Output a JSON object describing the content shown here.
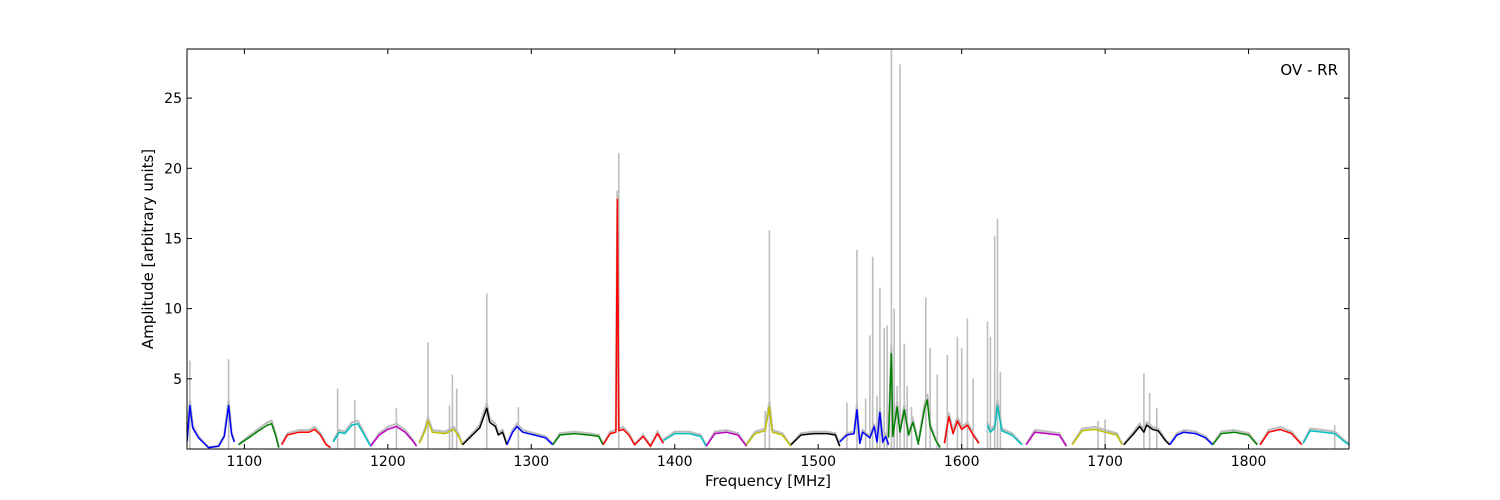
{
  "chart_data": {
    "type": "line",
    "title": "",
    "annotation": "OV - RR",
    "xlabel": "Frequency [MHz]",
    "ylabel": "Amplitude [arbitrary units]",
    "xlim": [
      1060,
      1870
    ],
    "ylim": [
      0,
      28.5
    ],
    "xticks": [
      1100,
      1200,
      1300,
      1400,
      1500,
      1600,
      1700,
      1800
    ],
    "yticks": [
      5,
      10,
      15,
      20,
      25
    ],
    "grid": false,
    "gray_color": "#bebebe",
    "gray_peaks": [
      [
        1062,
        6.3
      ],
      [
        1089,
        6.4
      ],
      [
        1165,
        4.3
      ],
      [
        1177,
        3.5
      ],
      [
        1206,
        2.9
      ],
      [
        1228,
        7.6
      ],
      [
        1243,
        3.1
      ],
      [
        1245,
        5.3
      ],
      [
        1248,
        4.3
      ],
      [
        1269,
        11.1
      ],
      [
        1291,
        3.0
      ],
      [
        1361,
        21.1
      ],
      [
        1463,
        2.7
      ],
      [
        1466,
        15.6
      ],
      [
        1520,
        3.3
      ],
      [
        1527,
        14.2
      ],
      [
        1533,
        3.6
      ],
      [
        1536,
        8.1
      ],
      [
        1538,
        13.7
      ],
      [
        1541,
        3.8
      ],
      [
        1543,
        11.5
      ],
      [
        1546,
        8.6
      ],
      [
        1548,
        8.8
      ],
      [
        1551,
        28.5
      ],
      [
        1553,
        10.0
      ],
      [
        1555,
        4.5
      ],
      [
        1557,
        27.4
      ],
      [
        1560,
        7.5
      ],
      [
        1562,
        4.5
      ],
      [
        1565,
        3.0
      ],
      [
        1575,
        10.8
      ],
      [
        1578,
        7.2
      ],
      [
        1583,
        5.3
      ],
      [
        1590,
        6.7
      ],
      [
        1597,
        8.0
      ],
      [
        1600,
        7.2
      ],
      [
        1604,
        9.3
      ],
      [
        1608,
        5.0
      ],
      [
        1618,
        9.1
      ],
      [
        1620,
        8.0
      ],
      [
        1623,
        15.2
      ],
      [
        1625,
        16.4
      ],
      [
        1627,
        5.5
      ],
      [
        1695,
        2.0
      ],
      [
        1700,
        2.1
      ],
      [
        1727,
        5.4
      ],
      [
        1731,
        4.0
      ],
      [
        1736,
        2.9
      ],
      [
        1860,
        1.7
      ]
    ],
    "series": [
      {
        "color": "#0000ff",
        "points": [
          [
            1060,
            0.5
          ],
          [
            1062,
            3.1
          ],
          [
            1064,
            1.5
          ],
          [
            1068,
            0.8
          ],
          [
            1075,
            0.1
          ],
          [
            1082,
            0.2
          ],
          [
            1086,
            0.9
          ],
          [
            1089,
            3.1
          ],
          [
            1091,
            1.1
          ],
          [
            1093,
            0.5
          ]
        ]
      },
      {
        "color": "#008000",
        "points": [
          [
            1096,
            0.3
          ],
          [
            1103,
            0.8
          ],
          [
            1110,
            1.3
          ],
          [
            1116,
            1.7
          ],
          [
            1119,
            1.8
          ],
          [
            1122,
            0.9
          ],
          [
            1124,
            0.1
          ]
        ]
      },
      {
        "color": "#ff0000",
        "points": [
          [
            1126,
            0.3
          ],
          [
            1130,
            1.0
          ],
          [
            1138,
            1.2
          ],
          [
            1145,
            1.2
          ],
          [
            1149,
            1.4
          ],
          [
            1153,
            1.0
          ],
          [
            1157,
            0.3
          ],
          [
            1160,
            0.1
          ]
        ]
      },
      {
        "color": "#00bfbf",
        "points": [
          [
            1162,
            0.5
          ],
          [
            1166,
            1.2
          ],
          [
            1170,
            1.1
          ],
          [
            1175,
            1.7
          ],
          [
            1179,
            1.8
          ],
          [
            1183,
            1.1
          ],
          [
            1188,
            0.2
          ]
        ]
      },
      {
        "color": "#bf00bf",
        "points": [
          [
            1188,
            0.2
          ],
          [
            1194,
            1.0
          ],
          [
            1200,
            1.4
          ],
          [
            1206,
            1.6
          ],
          [
            1212,
            1.2
          ],
          [
            1218,
            0.5
          ],
          [
            1220,
            0.2
          ]
        ]
      },
      {
        "color": "#bfbf00",
        "points": [
          [
            1222,
            0.4
          ],
          [
            1226,
            1.3
          ],
          [
            1228,
            2.0
          ],
          [
            1231,
            1.2
          ],
          [
            1240,
            1.1
          ],
          [
            1246,
            1.4
          ],
          [
            1249,
            1.0
          ],
          [
            1252,
            0.3
          ]
        ]
      },
      {
        "color": "#000000",
        "points": [
          [
            1252,
            0.3
          ],
          [
            1258,
            0.9
          ],
          [
            1264,
            1.5
          ],
          [
            1269,
            2.9
          ],
          [
            1271,
            1.9
          ],
          [
            1275,
            1.6
          ],
          [
            1277,
            1.0
          ],
          [
            1280,
            1.2
          ],
          [
            1283,
            0.3
          ]
        ]
      },
      {
        "color": "#0000ff",
        "points": [
          [
            1283,
            0.3
          ],
          [
            1287,
            1.2
          ],
          [
            1290,
            1.6
          ],
          [
            1294,
            1.2
          ],
          [
            1302,
            1.0
          ],
          [
            1310,
            0.8
          ],
          [
            1315,
            0.3
          ]
        ]
      },
      {
        "color": "#008000",
        "points": [
          [
            1315,
            0.3
          ],
          [
            1320,
            1.0
          ],
          [
            1330,
            1.1
          ],
          [
            1340,
            1.0
          ],
          [
            1347,
            0.9
          ],
          [
            1350,
            0.3
          ]
        ]
      },
      {
        "color": "#ff0000",
        "points": [
          [
            1350,
            0.3
          ],
          [
            1355,
            1.1
          ],
          [
            1359,
            1.2
          ],
          [
            1360,
            17.8
          ],
          [
            1361,
            1.3
          ],
          [
            1364,
            1.4
          ],
          [
            1368,
            1.0
          ],
          [
            1372,
            0.3
          ],
          [
            1378,
            0.9
          ],
          [
            1383,
            0.2
          ],
          [
            1388,
            1.1
          ],
          [
            1392,
            0.4
          ]
        ]
      },
      {
        "color": "#00bfbf",
        "points": [
          [
            1392,
            0.6
          ],
          [
            1400,
            1.1
          ],
          [
            1410,
            1.1
          ],
          [
            1418,
            0.9
          ],
          [
            1422,
            0.2
          ]
        ]
      },
      {
        "color": "#bf00bf",
        "points": [
          [
            1422,
            0.2
          ],
          [
            1428,
            1.1
          ],
          [
            1436,
            1.2
          ],
          [
            1444,
            1.0
          ],
          [
            1450,
            0.2
          ]
        ]
      },
      {
        "color": "#bfbf00",
        "points": [
          [
            1450,
            0.3
          ],
          [
            1456,
            1.1
          ],
          [
            1463,
            1.3
          ],
          [
            1466,
            3.0
          ],
          [
            1468,
            1.2
          ],
          [
            1475,
            1.0
          ],
          [
            1481,
            0.2
          ]
        ]
      },
      {
        "color": "#000000",
        "points": [
          [
            1481,
            0.3
          ],
          [
            1488,
            1.0
          ],
          [
            1497,
            1.1
          ],
          [
            1506,
            1.1
          ],
          [
            1512,
            1.0
          ],
          [
            1515,
            0.2
          ]
        ]
      },
      {
        "color": "#0000ff",
        "points": [
          [
            1515,
            0.5
          ],
          [
            1520,
            1.0
          ],
          [
            1525,
            1.1
          ],
          [
            1527,
            2.8
          ],
          [
            1529,
            0.4
          ],
          [
            1531,
            1.2
          ],
          [
            1536,
            0.8
          ],
          [
            1539,
            1.6
          ],
          [
            1541,
            0.5
          ],
          [
            1543,
            2.6
          ],
          [
            1545,
            0.5
          ],
          [
            1547,
            0.9
          ],
          [
            1549,
            0.3
          ]
        ]
      },
      {
        "color": "#008000",
        "points": [
          [
            1549,
            0.8
          ],
          [
            1551,
            6.8
          ],
          [
            1552,
            0.9
          ],
          [
            1555,
            3.0
          ],
          [
            1557,
            1.2
          ],
          [
            1560,
            2.8
          ],
          [
            1563,
            1.0
          ],
          [
            1566,
            1.9
          ],
          [
            1570,
            0.3
          ]
        ]
      },
      {
        "color": "#008000",
        "points": [
          [
            1570,
            0.5
          ],
          [
            1574,
            2.8
          ],
          [
            1576,
            3.5
          ],
          [
            1578,
            1.6
          ],
          [
            1582,
            0.6
          ],
          [
            1585,
            0.1
          ]
        ]
      },
      {
        "color": "#ff0000",
        "points": [
          [
            1588,
            0.4
          ],
          [
            1591,
            2.3
          ],
          [
            1594,
            1.1
          ],
          [
            1597,
            2.0
          ],
          [
            1600,
            1.4
          ],
          [
            1604,
            1.7
          ],
          [
            1608,
            1.0
          ],
          [
            1612,
            0.4
          ]
        ]
      },
      {
        "color": "#00bfbf",
        "points": [
          [
            1618,
            1.7
          ],
          [
            1620,
            1.2
          ],
          [
            1623,
            1.5
          ],
          [
            1625,
            3.1
          ],
          [
            1628,
            1.3
          ],
          [
            1635,
            1.0
          ],
          [
            1642,
            0.3
          ]
        ]
      },
      {
        "color": "#bf00bf",
        "points": [
          [
            1645,
            0.3
          ],
          [
            1651,
            1.2
          ],
          [
            1660,
            1.1
          ],
          [
            1668,
            1.0
          ],
          [
            1673,
            0.2
          ]
        ]
      },
      {
        "color": "#bfbf00",
        "points": [
          [
            1677,
            0.3
          ],
          [
            1684,
            1.3
          ],
          [
            1693,
            1.4
          ],
          [
            1700,
            1.2
          ],
          [
            1708,
            1.0
          ],
          [
            1712,
            0.3
          ]
        ]
      },
      {
        "color": "#000000",
        "points": [
          [
            1713,
            0.3
          ],
          [
            1720,
            1.1
          ],
          [
            1724,
            1.6
          ],
          [
            1727,
            1.2
          ],
          [
            1729,
            1.7
          ],
          [
            1733,
            1.4
          ],
          [
            1737,
            1.3
          ],
          [
            1742,
            0.6
          ],
          [
            1745,
            0.3
          ]
        ]
      },
      {
        "color": "#0000ff",
        "points": [
          [
            1745,
            0.3
          ],
          [
            1750,
            1.0
          ],
          [
            1755,
            1.2
          ],
          [
            1763,
            1.1
          ],
          [
            1770,
            0.8
          ],
          [
            1775,
            0.3
          ]
        ]
      },
      {
        "color": "#008000",
        "points": [
          [
            1775,
            0.3
          ],
          [
            1781,
            1.1
          ],
          [
            1790,
            1.2
          ],
          [
            1800,
            1.0
          ],
          [
            1806,
            0.3
          ]
        ]
      },
      {
        "color": "#ff0000",
        "points": [
          [
            1808,
            0.3
          ],
          [
            1814,
            1.2
          ],
          [
            1822,
            1.4
          ],
          [
            1830,
            1.1
          ],
          [
            1837,
            0.3
          ]
        ]
      },
      {
        "color": "#00bfbf",
        "points": [
          [
            1838,
            0.4
          ],
          [
            1843,
            1.3
          ],
          [
            1852,
            1.2
          ],
          [
            1860,
            1.1
          ],
          [
            1866,
            0.6
          ],
          [
            1870,
            0.3
          ]
        ]
      }
    ]
  }
}
